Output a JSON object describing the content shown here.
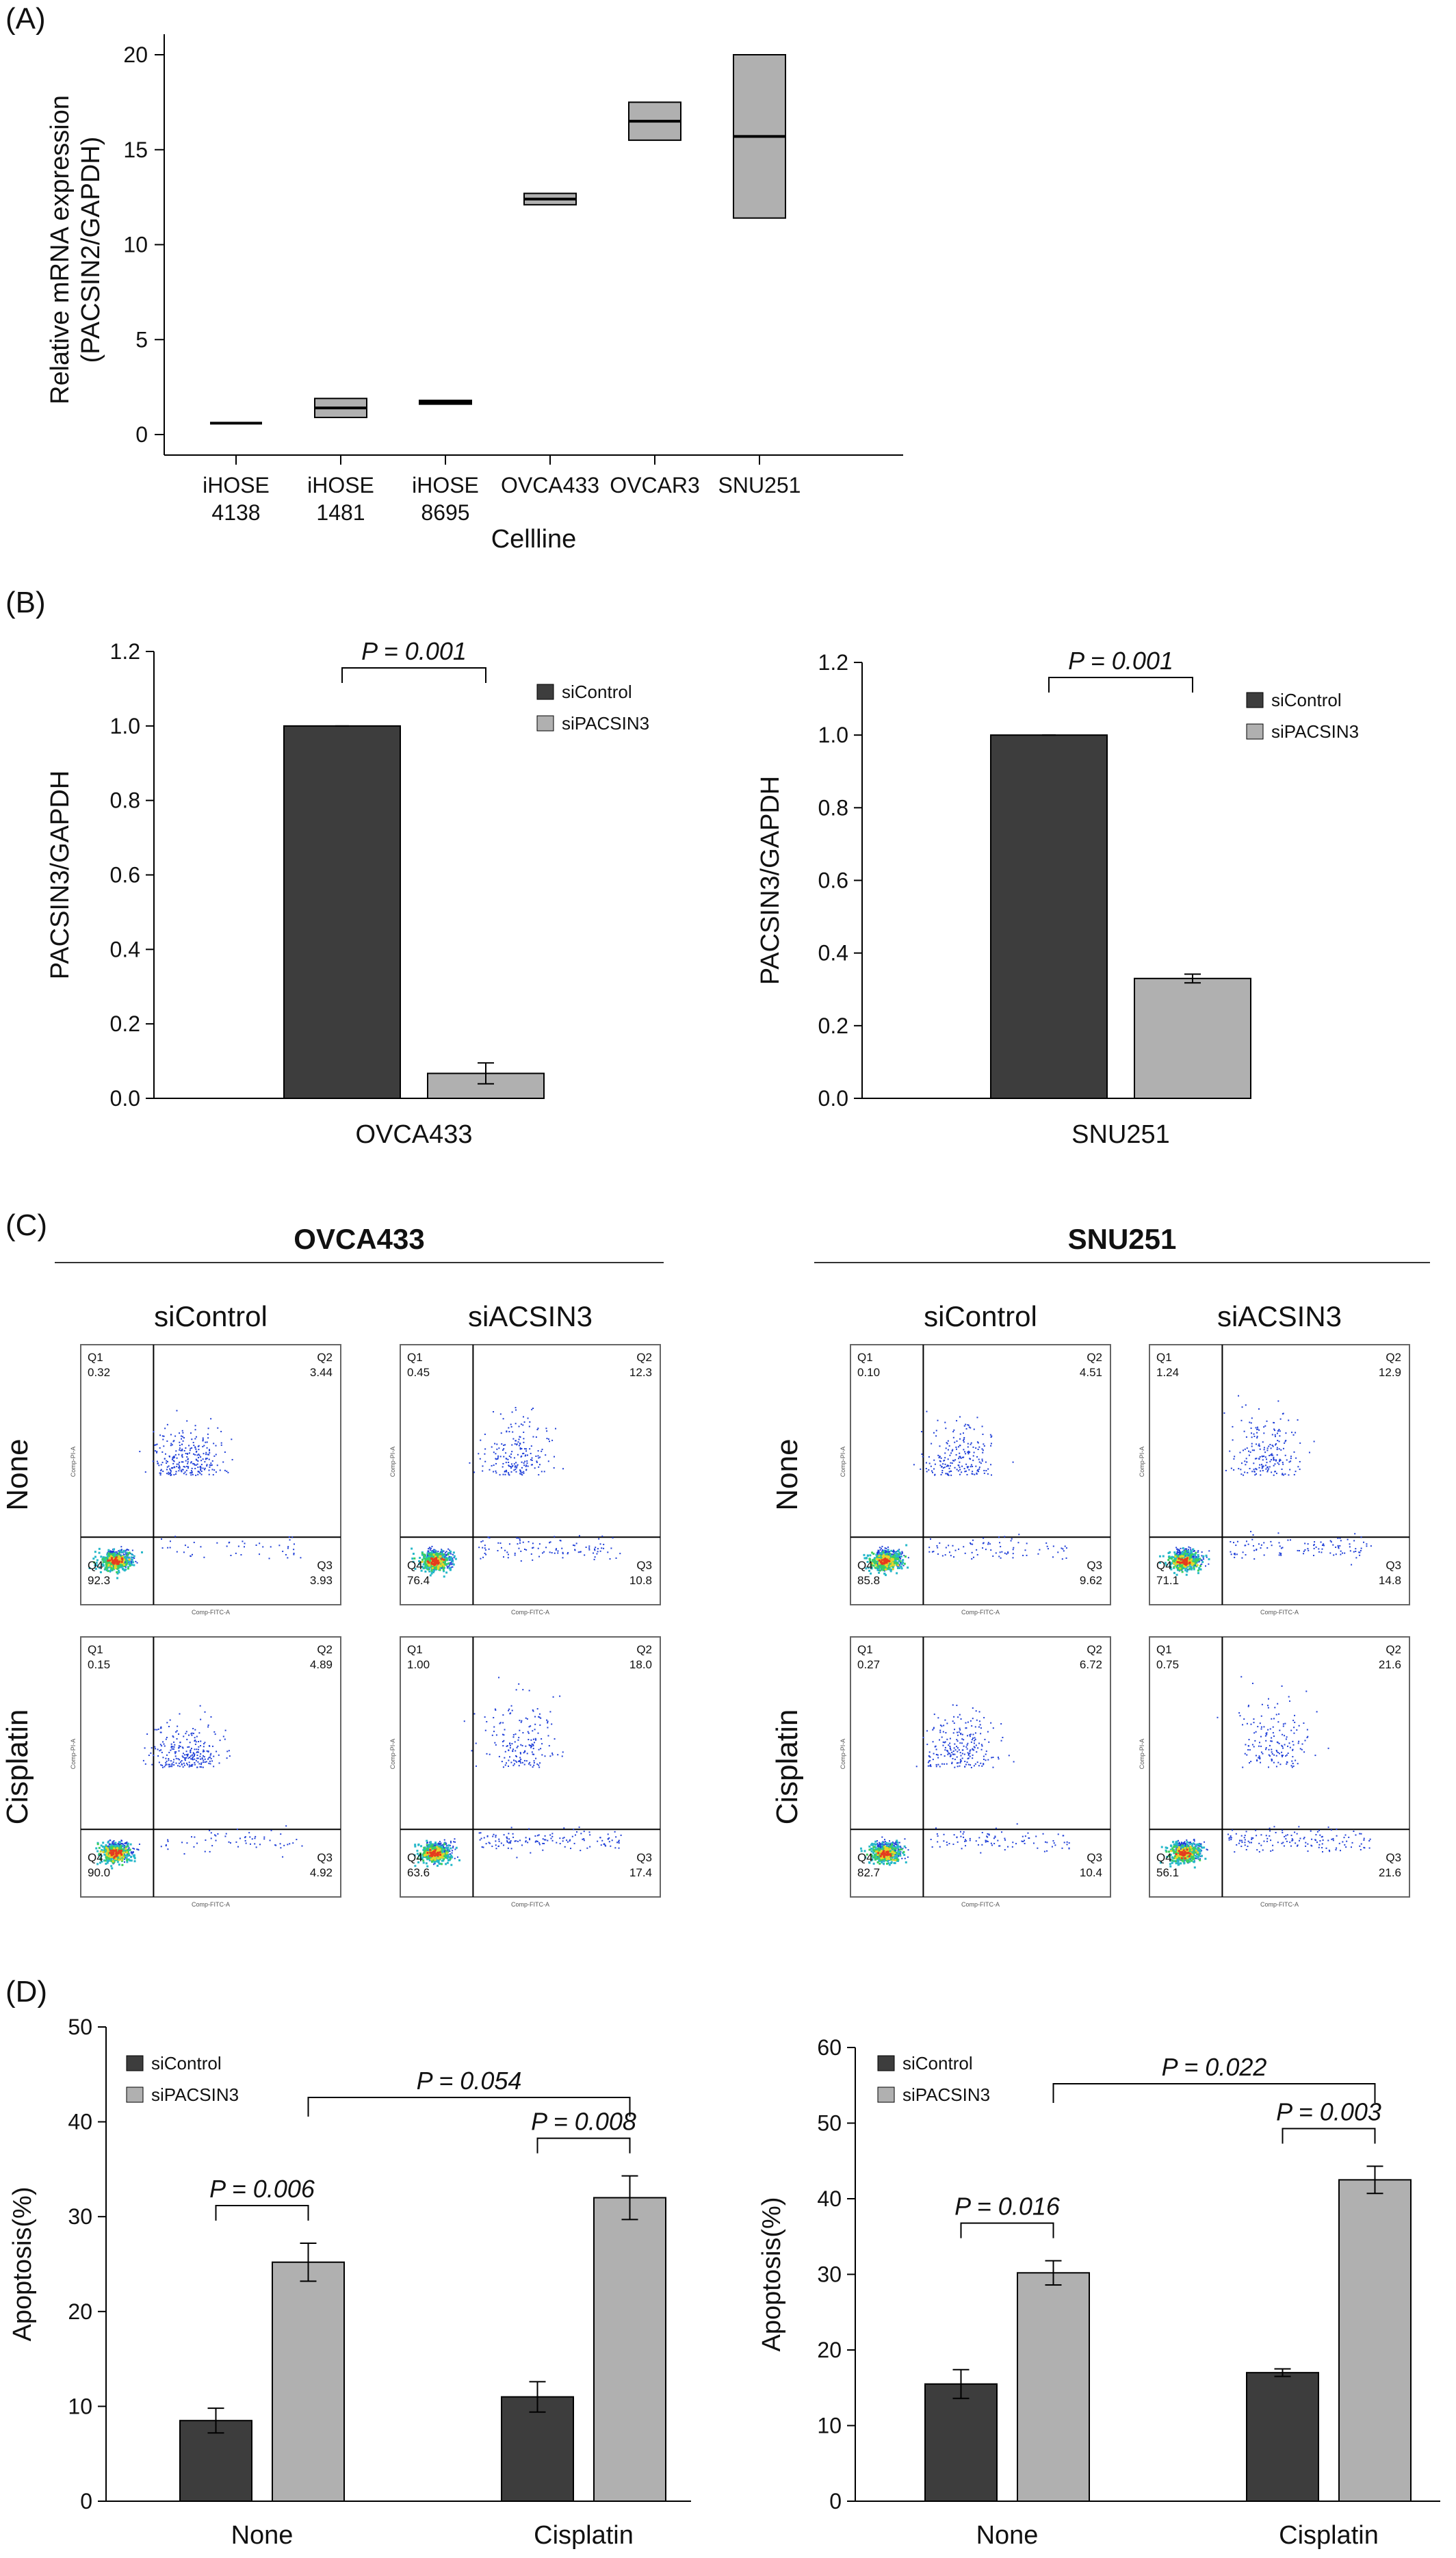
{
  "panels": {
    "A": "(A)",
    "B": "(B)",
    "C": "(C)",
    "D": "(D)"
  },
  "colors": {
    "siControl": "#3d3d3d",
    "siPACSIN3": "#b0b0b0",
    "box": "#b0b0b0"
  },
  "chart_data": [
    {
      "panel": "A",
      "type": "box",
      "ylabel_line1": "Relative mRNA expression",
      "ylabel_line2": "(PACSIN2/GAPDH)",
      "xlabel": "Cellline",
      "ylim": [
        0,
        20
      ],
      "yticks": [
        "0",
        "5",
        "10",
        "15",
        "20"
      ],
      "categories": [
        {
          "line1": "iHOSE",
          "line2": "4138"
        },
        {
          "line1": "iHOSE",
          "line2": "1481"
        },
        {
          "line1": "iHOSE",
          "line2": "8695"
        },
        {
          "line1": "OVCA433",
          "line2": ""
        },
        {
          "line1": "OVCAR3",
          "line2": ""
        },
        {
          "line1": "SNU251",
          "line2": ""
        }
      ],
      "boxes": [
        {
          "low": 0.6,
          "high": 0.6,
          "median": 0.6
        },
        {
          "low": 0.9,
          "high": 1.9,
          "median": 1.4
        },
        {
          "low": 1.6,
          "high": 1.8,
          "median": 1.7
        },
        {
          "low": 12.1,
          "high": 12.7,
          "median": 12.4
        },
        {
          "low": 15.5,
          "high": 17.5,
          "median": 16.5
        },
        {
          "low": 11.4,
          "high": 20.0,
          "median": 15.7
        }
      ]
    },
    {
      "panel": "B-left",
      "type": "bar",
      "ylabel": "PACSIN3/GAPDH",
      "category": "OVCA433",
      "ylim": [
        0,
        1.2
      ],
      "yticks": [
        "0.0",
        "0.2",
        "0.4",
        "0.6",
        "0.8",
        "1.0",
        "1.2"
      ],
      "series": [
        {
          "name": "siControl",
          "value": 1.0,
          "err": 0.0
        },
        {
          "name": "siPACSIN3",
          "value": 0.067,
          "err": 0.028
        }
      ],
      "p_value": "P = 0.001"
    },
    {
      "panel": "B-right",
      "type": "bar",
      "ylabel": "PACSIN3/GAPDH",
      "category": "SNU251",
      "ylim": [
        0,
        1.2
      ],
      "yticks": [
        "0.0",
        "0.2",
        "0.4",
        "0.6",
        "0.8",
        "1.0",
        "1.2"
      ],
      "series": [
        {
          "name": "siControl",
          "value": 1.0,
          "err": 0.0
        },
        {
          "name": "siPACSIN3",
          "value": 0.33,
          "err": 0.012
        }
      ],
      "p_value": "P = 0.001"
    },
    {
      "panel": "D-left",
      "type": "bar",
      "ylabel": "Apoptosis(%)",
      "categories": [
        "None",
        "Cisplatin"
      ],
      "ylim": [
        0,
        50
      ],
      "yticks": [
        "0",
        "10",
        "20",
        "30",
        "40",
        "50"
      ],
      "series": [
        {
          "name": "siControl",
          "values": [
            8.5,
            11.0
          ],
          "errs": [
            1.3,
            1.6
          ]
        },
        {
          "name": "siPACSIN3",
          "values": [
            25.2,
            32.0
          ],
          "errs": [
            2.0,
            2.3
          ]
        }
      ],
      "p_values": {
        "none": "P = 0.006",
        "cisplatin": "P = 0.008",
        "between": "P = 0.054"
      }
    },
    {
      "panel": "D-right",
      "type": "bar",
      "ylabel": "Apoptosis(%)",
      "categories": [
        "None",
        "Cisplatin"
      ],
      "ylim": [
        0,
        60
      ],
      "yticks": [
        "0",
        "10",
        "20",
        "30",
        "40",
        "50",
        "60"
      ],
      "series": [
        {
          "name": "siControl",
          "values": [
            15.5,
            17.0
          ],
          "errs": [
            1.9,
            0.5
          ]
        },
        {
          "name": "siPACSIN3",
          "values": [
            30.2,
            42.5
          ],
          "errs": [
            1.6,
            1.8
          ]
        }
      ],
      "p_values": {
        "none": "P = 0.016",
        "cisplatin": "P = 0.003",
        "between": "P = 0.022"
      }
    }
  ],
  "flow": {
    "groups": [
      {
        "title": "OVCA433",
        "columns": [
          "siControl",
          "siACSIN3"
        ]
      },
      {
        "title": "SNU251",
        "columns": [
          "siControl",
          "siACSIN3"
        ]
      }
    ],
    "rows": [
      "None",
      "Cisplatin"
    ],
    "xaxis_label": "Comp-FITC-A",
    "yaxis_label": "Comp-PI-A",
    "quadrant_names": [
      "Q1",
      "Q2",
      "Q3",
      "Q4"
    ],
    "plots": [
      {
        "group": 0,
        "row": 0,
        "col": 0,
        "q1": "0.32",
        "q2": "3.44",
        "q3": "3.93",
        "q4": "92.3",
        "spread": 0.35
      },
      {
        "group": 0,
        "row": 0,
        "col": 1,
        "q1": "0.45",
        "q2": "12.3",
        "q3": "10.8",
        "q4": "76.4",
        "spread": 0.6
      },
      {
        "group": 0,
        "row": 1,
        "col": 0,
        "q1": "0.15",
        "q2": "4.89",
        "q3": "4.92",
        "q4": "90.0",
        "spread": 0.35
      },
      {
        "group": 0,
        "row": 1,
        "col": 1,
        "q1": "1.00",
        "q2": "18.0",
        "q3": "17.4",
        "q4": "63.6",
        "spread": 0.75
      },
      {
        "group": 1,
        "row": 0,
        "col": 0,
        "q1": "0.10",
        "q2": "4.51",
        "q3": "9.62",
        "q4": "85.8",
        "spread": 0.45
      },
      {
        "group": 1,
        "row": 0,
        "col": 1,
        "q1": "1.24",
        "q2": "12.9",
        "q3": "14.8",
        "q4": "71.1",
        "spread": 0.65
      },
      {
        "group": 1,
        "row": 1,
        "col": 0,
        "q1": "0.27",
        "q2": "6.72",
        "q3": "10.4",
        "q4": "82.7",
        "spread": 0.5
      },
      {
        "group": 1,
        "row": 1,
        "col": 1,
        "q1": "0.75",
        "q2": "21.6",
        "q3": "21.6",
        "q4": "56.1",
        "spread": 0.85
      }
    ]
  }
}
